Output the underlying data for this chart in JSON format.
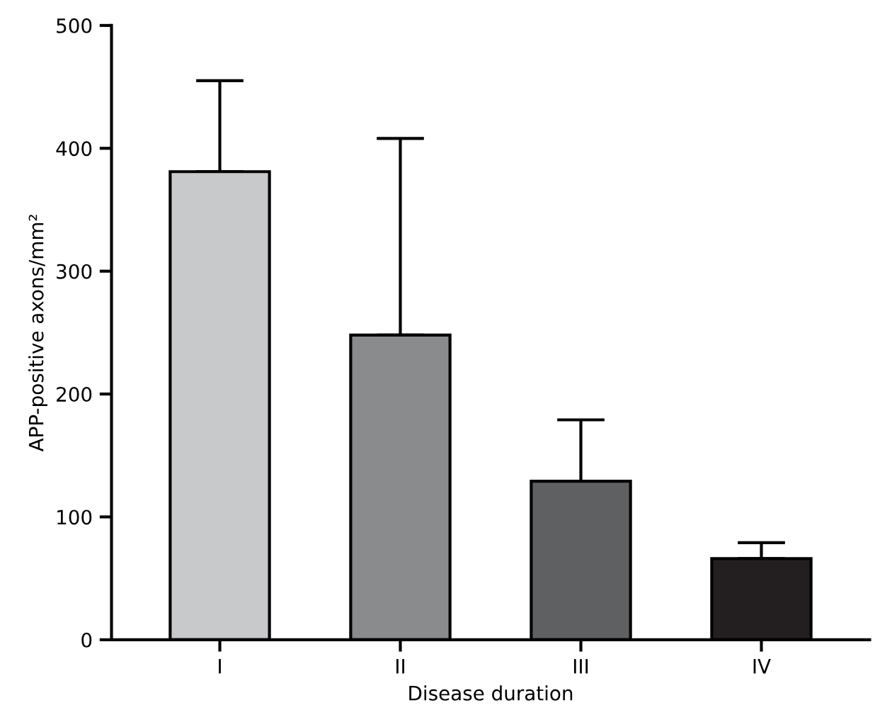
{
  "chart_data": {
    "type": "bar",
    "xlabel": "Disease duration",
    "ylabel": "APP-positive axons/mm²",
    "categories": [
      "I",
      "II",
      "III",
      "IV"
    ],
    "values": [
      381,
      248,
      129,
      66
    ],
    "colors": [
      "#c8c9cb",
      "#8a8b8d",
      "#5f6062",
      "#231f20"
    ],
    "errors": [
      [
        381,
        455
      ],
      [
        248,
        408
      ],
      [
        129,
        179
      ],
      [
        66,
        79
      ]
    ],
    "ylim": [
      0,
      500
    ],
    "yticks": [
      0,
      100,
      200,
      300,
      400,
      500
    ],
    "grid": false,
    "legend": false
  }
}
